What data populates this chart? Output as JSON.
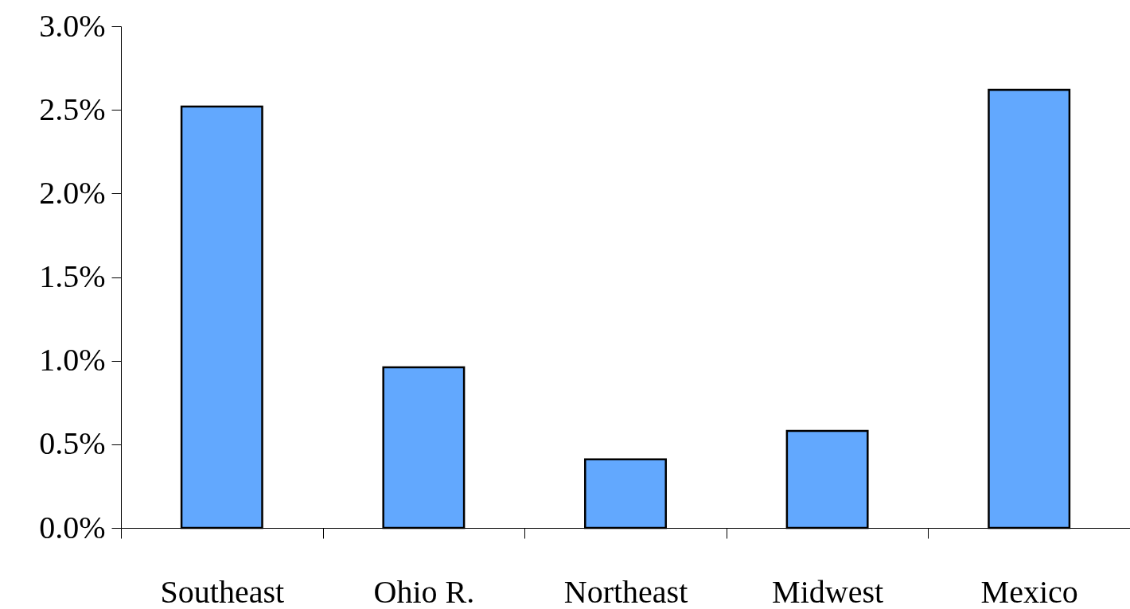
{
  "chart_data": {
    "type": "bar",
    "categories": [
      "Southeast",
      "Ohio R.",
      "Northeast",
      "Midwest",
      "Mexico"
    ],
    "values": [
      2.52,
      0.96,
      0.41,
      0.58,
      2.62
    ],
    "color": "#62a8fe",
    "ylim": [
      0,
      3
    ],
    "yticks": [
      {
        "value": 0,
        "label": "0.0%"
      },
      {
        "value": 0.5,
        "label": "0.5%"
      },
      {
        "value": 1,
        "label": "1.0%"
      },
      {
        "value": 1.5,
        "label": "1.5%"
      },
      {
        "value": 2,
        "label": "2.0%"
      },
      {
        "value": 2.5,
        "label": "2.5%"
      },
      {
        "value": 3,
        "label": "3.0%"
      }
    ],
    "grid": false
  }
}
